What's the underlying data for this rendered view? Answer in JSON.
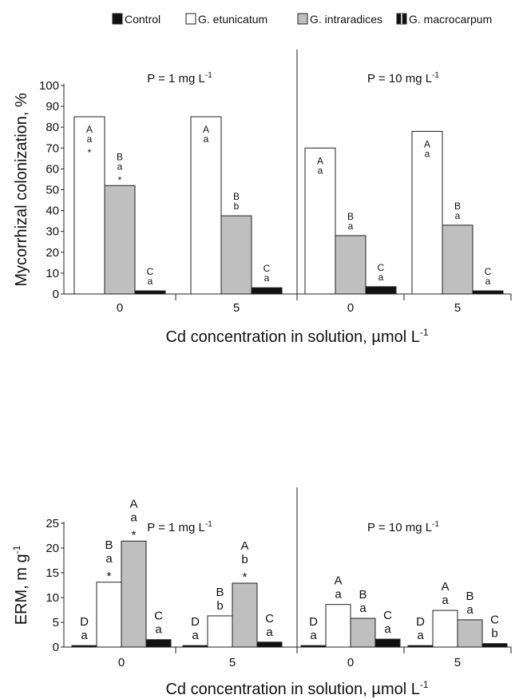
{
  "legend": {
    "items": [
      {
        "label": "Control",
        "color": "#111111"
      },
      {
        "label": "G. etunicatum",
        "color": "#ffffff"
      },
      {
        "label": "G. intraradices",
        "color": "#bfbfbf"
      },
      {
        "label": "G. macrocarpum",
        "color": "#111111"
      }
    ]
  },
  "chart_data": [
    {
      "type": "bar",
      "ylabel": "Mycorrhizal colonization, %",
      "xlabel": "Cd concentration in solution, µmol L",
      "xlabel_sup": "-1",
      "ylim": [
        0,
        100
      ],
      "yticks": [
        "0",
        "10",
        "20",
        "30",
        "40",
        "50",
        "60",
        "70",
        "80",
        "90",
        "100"
      ],
      "panels": [
        {
          "label": "P = 1  mg L",
          "sup": "-1"
        },
        {
          "label": "P = 10  mg L",
          "sup": "-1"
        }
      ],
      "categories": [
        "0",
        "5",
        "0",
        "5"
      ],
      "series": [
        {
          "name": "G. etunicatum",
          "values": [
            85,
            85,
            70,
            78
          ]
        },
        {
          "name": "G. intraradices",
          "values": [
            52,
            37.5,
            28,
            33
          ]
        },
        {
          "name": "G. macrocarpum",
          "values": [
            1.5,
            3,
            3.5,
            1.5
          ]
        }
      ],
      "annotations": [
        [
          [
            "A",
            "a",
            "*"
          ],
          [
            "B",
            "a",
            "*"
          ],
          [
            "C",
            "a"
          ]
        ],
        [
          [
            "A",
            "a"
          ],
          [
            "B",
            "b"
          ],
          [
            "C",
            "a"
          ]
        ],
        [
          [
            "A",
            "a"
          ],
          [
            "B",
            "a"
          ],
          [
            "C",
            "a"
          ]
        ],
        [
          [
            "A",
            "a"
          ],
          [
            "B",
            "a"
          ],
          [
            "C",
            "a"
          ]
        ]
      ]
    },
    {
      "type": "bar",
      "ylabel": "ERM, m g",
      "ylabel_sup": "-1",
      "xlabel": "Cd concentration in solution, µmol L",
      "xlabel_sup": "-1",
      "ylim": [
        0,
        25
      ],
      "yticks": [
        "0",
        "5",
        "10",
        "15",
        "20",
        "25"
      ],
      "panels": [
        {
          "label": "P = 1  mg L",
          "sup": "-1"
        },
        {
          "label": "P = 10  mg L",
          "sup": "-1"
        }
      ],
      "categories": [
        "0",
        "5",
        "0",
        "5"
      ],
      "series": [
        {
          "name": "Control",
          "values": [
            0.3,
            0.3,
            0.3,
            0.3
          ]
        },
        {
          "name": "G. etunicatum",
          "values": [
            13.1,
            6.3,
            8.6,
            7.4
          ]
        },
        {
          "name": "G. intraradices",
          "values": [
            21.4,
            12.9,
            5.8,
            5.5
          ]
        },
        {
          "name": "G. macrocarpum",
          "values": [
            1.5,
            1.0,
            1.6,
            0.7
          ]
        }
      ],
      "annotations": [
        [
          [
            "D",
            "a"
          ],
          [
            "B",
            "a",
            "*"
          ],
          [
            "A",
            "a",
            "*"
          ],
          [
            "C",
            "a"
          ]
        ],
        [
          [
            "D",
            "a"
          ],
          [
            "B",
            "b"
          ],
          [
            "A",
            "b",
            "*"
          ],
          [
            "C",
            "a"
          ]
        ],
        [
          [
            "D",
            "a"
          ],
          [
            "A",
            "a"
          ],
          [
            "B",
            "a"
          ],
          [
            "C",
            "a"
          ]
        ],
        [
          [
            "D",
            "a"
          ],
          [
            "A",
            "a"
          ],
          [
            "B",
            "a"
          ],
          [
            "C",
            "b"
          ]
        ]
      ]
    }
  ]
}
